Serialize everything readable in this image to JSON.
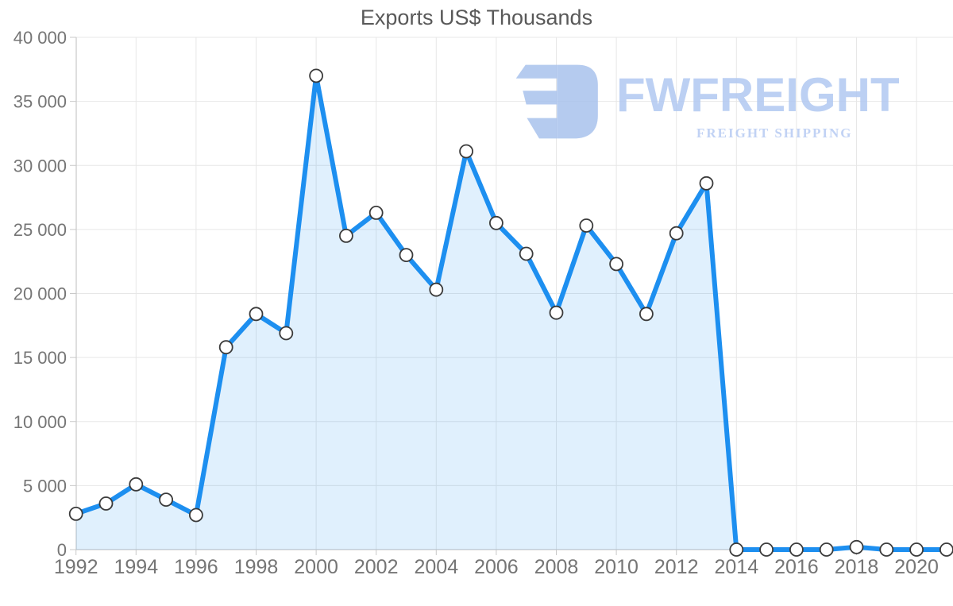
{
  "title": "Exports US$ Thousands",
  "watermark": {
    "brand": "FWFREIGHT",
    "tagline": "FREIGHT SHIPPING",
    "icon_color": "#a9c2ed",
    "brand_color": "#b1c8f1",
    "tagline_color": "#b7cbf3"
  },
  "chart_data": {
    "type": "area",
    "title": "Exports US$ Thousands",
    "xlabel": "",
    "ylabel": "",
    "x": [
      1992,
      1993,
      1994,
      1995,
      1996,
      1997,
      1998,
      1999,
      2000,
      2001,
      2002,
      2003,
      2004,
      2005,
      2006,
      2007,
      2008,
      2009,
      2010,
      2011,
      2012,
      2013,
      2014,
      2015,
      2016,
      2017,
      2018,
      2019,
      2020,
      2021
    ],
    "series": [
      {
        "name": "Exports US$ Thousands",
        "values": [
          2800,
          3600,
          5100,
          3900,
          2700,
          15800,
          18400,
          16900,
          37000,
          24500,
          26300,
          23000,
          20300,
          31100,
          25500,
          23100,
          18500,
          25300,
          22300,
          18400,
          24700,
          28600,
          0,
          0,
          0,
          0,
          200,
          0,
          0,
          0
        ]
      }
    ],
    "ylim": [
      0,
      40000
    ],
    "ytick_step": 5000,
    "ytick_labels": [
      "0",
      "5 000",
      "10 000",
      "15 000",
      "20 000",
      "25 000",
      "30 000",
      "35 000",
      "40 000"
    ],
    "xtick_labels": [
      "1992",
      "1994",
      "1996",
      "1998",
      "2000",
      "2002",
      "2004",
      "2006",
      "2008",
      "2010",
      "2012",
      "2014",
      "2016",
      "2018",
      "2020"
    ],
    "grid": "both, light gray, x gridlines every 2 years",
    "legend": false,
    "marker": "white circle with dark outline",
    "colors": {
      "line": "#1d8ff0",
      "fill": "rgba(33,150,243,0.14)",
      "marker_fill": "#ffffff",
      "marker_stroke": "#3b3b3b",
      "grid": "#e7e7e7",
      "axis": "#c9c9c9",
      "tick_label": "#757575",
      "title": "#595959"
    }
  }
}
